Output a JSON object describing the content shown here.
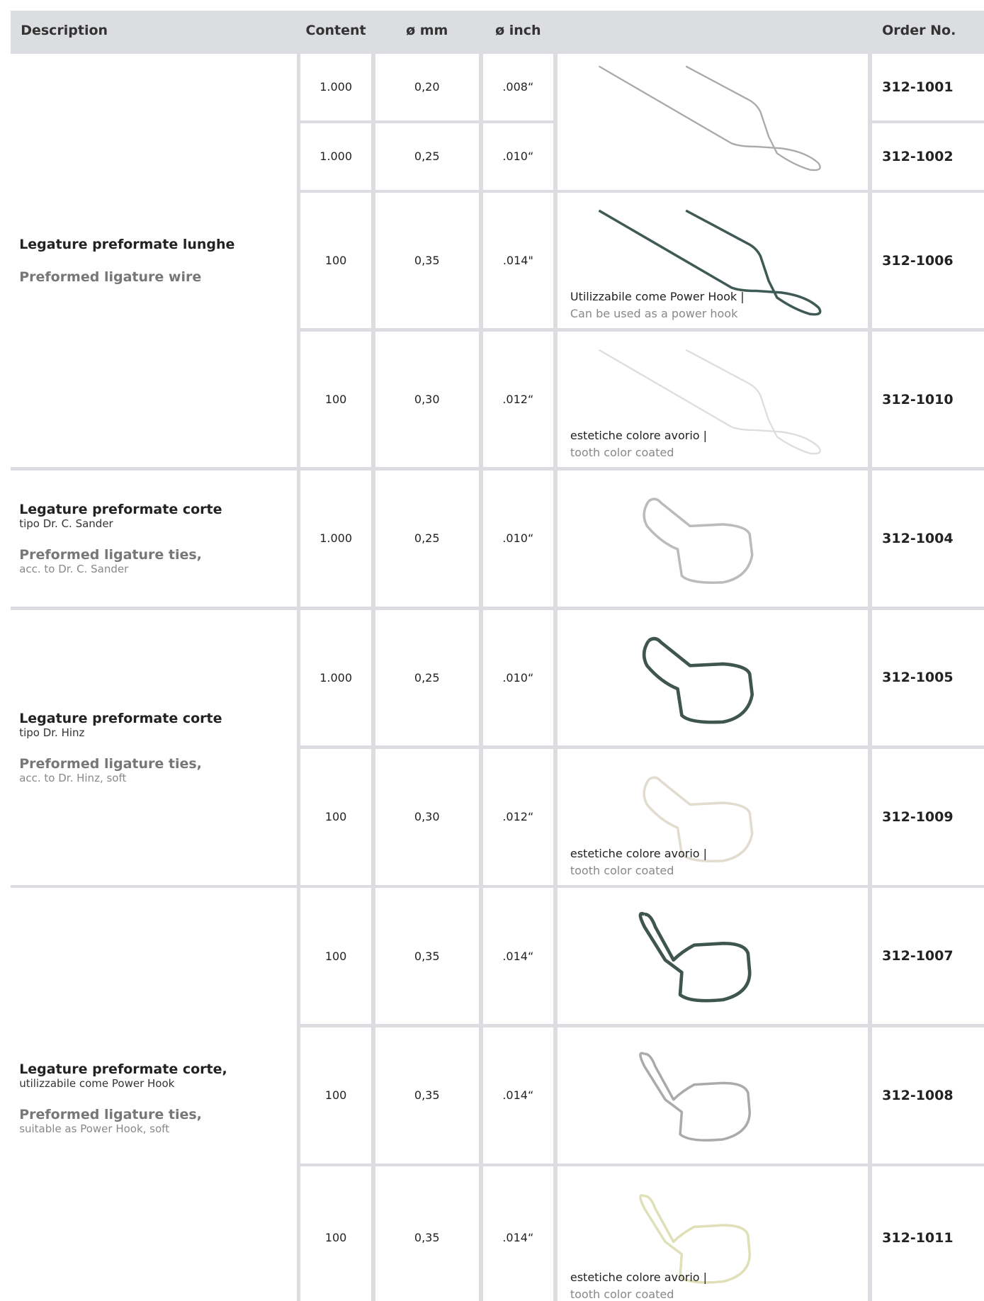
{
  "table": {
    "header": {
      "description": "Description",
      "content": "Content",
      "mm": "ø mm",
      "inch": "ø inch",
      "order": "Order No."
    },
    "groups": [
      {
        "title": "Legature preformate lunghe",
        "title_en": "Preformed ligature wire"
      },
      {
        "title": "Legature preformate corte",
        "subtitle": "tipo Dr. C. Sander",
        "title_en": "Preformed ligature ties,",
        "subtitle_en": "acc. to Dr. C. Sander"
      },
      {
        "title": "Legature preformate corte",
        "subtitle": "tipo Dr. Hinz",
        "title_en": "Preformed ligature ties,",
        "subtitle_en": "acc. to Dr. Hinz, soft"
      },
      {
        "title": "Legature preformate corte,",
        "subtitle": "utilizzabile come Power Hook",
        "title_en": "Preformed ligature ties,",
        "subtitle_en": "suitable as Power Hook, soft"
      }
    ],
    "rows": [
      {
        "content": "1.000",
        "mm": "0,20",
        "inch": ".008“",
        "order": "312-1001"
      },
      {
        "content": "1.000",
        "mm": "0,25",
        "inch": ".010“",
        "order": "312-1002"
      },
      {
        "content": "100",
        "mm": "0,35",
        "inch": ".014\"",
        "order": "312-1006",
        "note": {
          "it": "Utilizzabile come Power Hook |",
          "en": "Can be used as a power hook"
        }
      },
      {
        "content": "100",
        "mm": "0,30",
        "inch": ".012“",
        "order": "312-1010",
        "note": {
          "it": "estetiche colore avorio |",
          "en": "tooth color coated"
        }
      },
      {
        "content": "1.000",
        "mm": "0,25",
        "inch": ".010“",
        "order": "312-1004"
      },
      {
        "content": "1.000",
        "mm": "0,25",
        "inch": ".010“",
        "order": "312-1005"
      },
      {
        "content": "100",
        "mm": "0,30",
        "inch": ".012“",
        "order": "312-1009",
        "note": {
          "it": "estetiche colore avorio |",
          "en": "tooth color coated"
        }
      },
      {
        "content": "100",
        "mm": "0,35",
        "inch": ".014“",
        "order": "312-1007"
      },
      {
        "content": "100",
        "mm": "0,35",
        "inch": ".014“",
        "order": "312-1008"
      },
      {
        "content": "100",
        "mm": "0,35",
        "inch": ".014“",
        "order": "312-1011",
        "note": {
          "it": "estetiche colore avorio |",
          "en": "tooth color coated"
        }
      }
    ]
  }
}
